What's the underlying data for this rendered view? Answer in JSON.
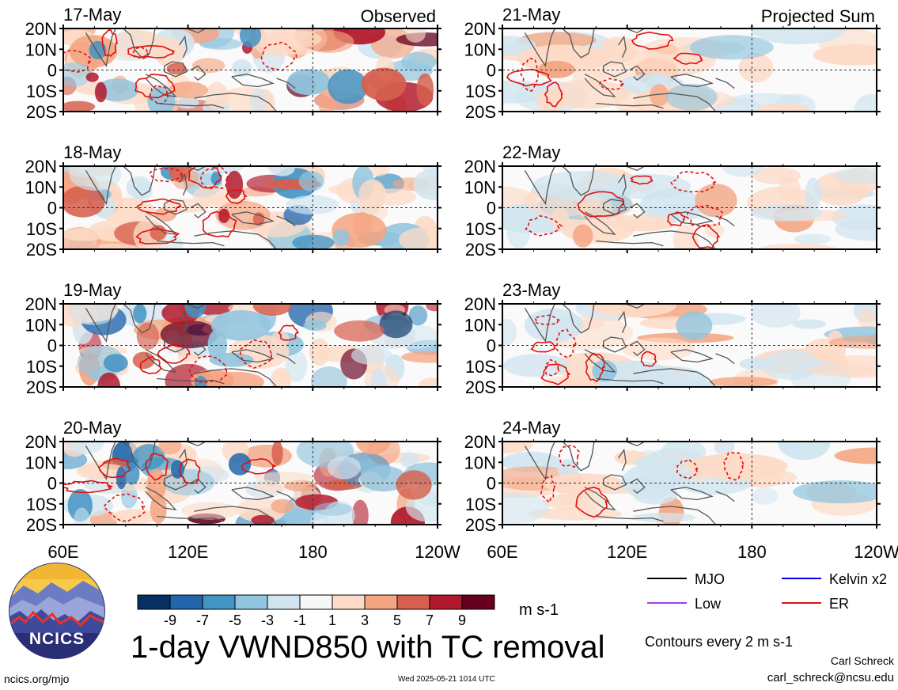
{
  "title": "1-day VWND850 with TC removal",
  "units": "m s-1",
  "contour_note": "Contours every 2 m s-1",
  "author": "Carl Schreck",
  "email": "carl_schreck@ncsu.edu",
  "site": "ncics.org/mjo",
  "timestamp": "Wed 2025-05-21 1014 UTC",
  "logo_text": "NCICS",
  "column_labels": {
    "left": "Observed",
    "right": "Projected Sum"
  },
  "colors": {
    "contour_positive": "#e01010",
    "ocean_bg": "#fafafa",
    "coast": "#555555"
  },
  "legend": [
    {
      "label": "MJO",
      "color": "#000000"
    },
    {
      "label": "Kelvin x2",
      "color": "#0000ee"
    },
    {
      "label": "Low",
      "color": "#a040e0"
    },
    {
      "label": "ER",
      "color": "#e01010"
    }
  ],
  "colorbar": {
    "colors": [
      "#053061",
      "#2166ac",
      "#4393c3",
      "#92c5de",
      "#d1e5f0",
      "#f7f7f7",
      "#fddbc7",
      "#f4a582",
      "#d6604d",
      "#b2182b",
      "#67001f"
    ],
    "labels": [
      "-9",
      "-7",
      "-5",
      "-3",
      "-1",
      "1",
      "3",
      "5",
      "7",
      "9"
    ]
  },
  "chart_data": {
    "type": "heatmap",
    "variable": "VWND850",
    "x_ticks": [
      "60E",
      "120E",
      "180",
      "120W"
    ],
    "y_ticks": [
      "20N",
      "10N",
      "0",
      "10S",
      "20S"
    ],
    "panels": [
      {
        "date": "17-May",
        "kind": "Observed",
        "col": 0,
        "row": 0
      },
      {
        "date": "18-May",
        "kind": "Observed",
        "col": 0,
        "row": 1
      },
      {
        "date": "19-May",
        "kind": "Observed",
        "col": 0,
        "row": 2
      },
      {
        "date": "20-May",
        "kind": "Observed",
        "col": 0,
        "row": 3
      },
      {
        "date": "21-May",
        "kind": "Projected Sum",
        "col": 1,
        "row": 0
      },
      {
        "date": "22-May",
        "kind": "Projected Sum",
        "col": 1,
        "row": 1
      },
      {
        "date": "23-May",
        "kind": "Projected Sum",
        "col": 1,
        "row": 2
      },
      {
        "date": "24-May",
        "kind": "Projected Sum",
        "col": 1,
        "row": 3
      }
    ]
  }
}
